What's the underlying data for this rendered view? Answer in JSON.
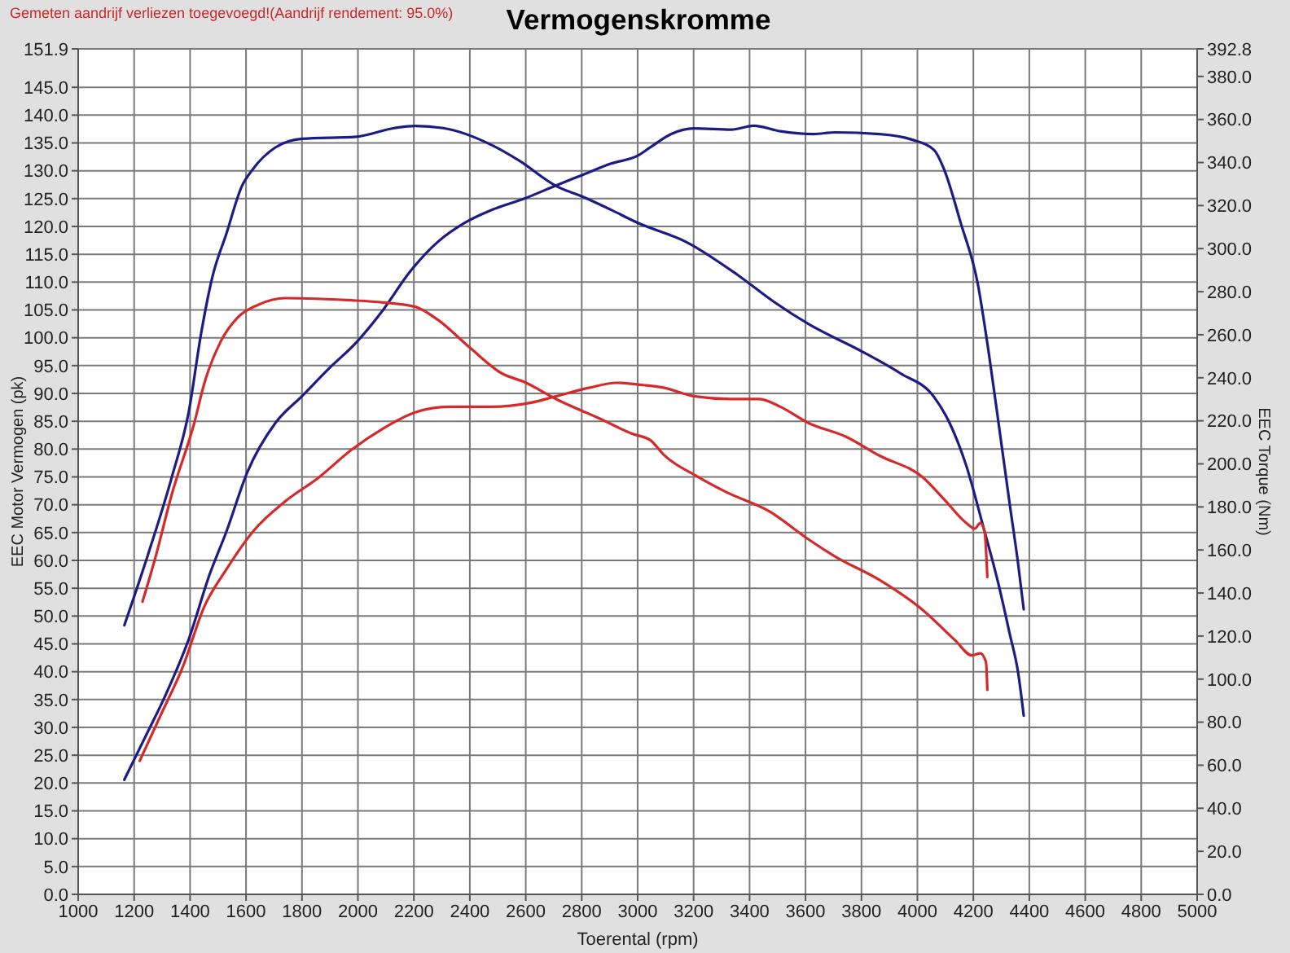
{
  "chart_data": {
    "type": "line",
    "title": "Vermogenskromme",
    "xlabel": "Toerental (rpm)",
    "ylabel": "EEC Motor Vermogen (pk)",
    "y2label": "EEC Torque (Nm)",
    "annotations": [
      "Gemeten aandrijf verliezen toegevoegd!(Aandrijf rendement: 95.0%)"
    ],
    "xlim": [
      1000,
      5000
    ],
    "xticks": [
      1000,
      1200,
      1400,
      1600,
      1800,
      2000,
      2200,
      2400,
      2600,
      2800,
      3000,
      3200,
      3400,
      3600,
      3800,
      4000,
      4200,
      4400,
      4600,
      4800,
      5000
    ],
    "ylim": [
      0,
      151.9
    ],
    "yticks": [
      {
        "value": 0,
        "label": "0.0"
      },
      {
        "value": 5,
        "label": "5.0"
      },
      {
        "value": 10,
        "label": "10.0"
      },
      {
        "value": 15,
        "label": "15.0"
      },
      {
        "value": 20,
        "label": "20.0"
      },
      {
        "value": 25,
        "label": "25.0"
      },
      {
        "value": 30,
        "label": "30.0"
      },
      {
        "value": 35,
        "label": "35.0"
      },
      {
        "value": 40,
        "label": "40.0"
      },
      {
        "value": 45,
        "label": "45.0"
      },
      {
        "value": 50,
        "label": "50.0"
      },
      {
        "value": 55,
        "label": "55.0"
      },
      {
        "value": 60,
        "label": "60.0"
      },
      {
        "value": 65,
        "label": "65.0"
      },
      {
        "value": 70,
        "label": "70.0"
      },
      {
        "value": 75,
        "label": "75.0"
      },
      {
        "value": 80,
        "label": "80.0"
      },
      {
        "value": 85,
        "label": "85.0"
      },
      {
        "value": 90,
        "label": "90.0"
      },
      {
        "value": 95,
        "label": "95.0"
      },
      {
        "value": 100,
        "label": "100.0"
      },
      {
        "value": 105,
        "label": "105.0"
      },
      {
        "value": 110,
        "label": "110.0"
      },
      {
        "value": 115,
        "label": "115.0"
      },
      {
        "value": 120,
        "label": "120.0"
      },
      {
        "value": 125,
        "label": "125.0"
      },
      {
        "value": 130,
        "label": "130.0"
      },
      {
        "value": 135,
        "label": "135.0"
      },
      {
        "value": 140,
        "label": "140.0"
      },
      {
        "value": 145,
        "label": "145.0"
      },
      151.9
    ],
    "y2lim": [
      0,
      392.8
    ],
    "y2ticks": [
      {
        "value": 0,
        "label": "0.0"
      },
      {
        "value": 20,
        "label": "20.0"
      },
      {
        "value": 40,
        "label": "40.0"
      },
      {
        "value": 60,
        "label": "60.0"
      },
      {
        "value": 80,
        "label": "80.0"
      },
      {
        "value": 100,
        "label": "100.0"
      },
      {
        "value": 120,
        "label": "120.0"
      },
      {
        "value": 140,
        "label": "140.0"
      },
      {
        "value": 160,
        "label": "160.0"
      },
      {
        "value": 180,
        "label": "180.0"
      },
      {
        "value": 200,
        "label": "200.0"
      },
      {
        "value": 220,
        "label": "220.0"
      },
      {
        "value": 240,
        "label": "240.0"
      },
      {
        "value": 260,
        "label": "260.0"
      },
      {
        "value": 280,
        "label": "280.0"
      },
      {
        "value": 300,
        "label": "300.0"
      },
      {
        "value": 320,
        "label": "320.0"
      },
      {
        "value": 340,
        "label": "340.0"
      },
      {
        "value": 360,
        "label": "360.0"
      },
      {
        "value": 380,
        "label": "380.0"
      },
      392.8
    ],
    "grid": true,
    "series": [
      {
        "color": "#1c1c84",
        "axis": "y2",
        "x": [
          1165,
          1250,
          1335,
          1395,
          1440,
          1480,
          1530,
          1585,
          1625,
          1705,
          1800,
          1995,
          2130,
          2205,
          2305,
          2480,
          2575,
          2710,
          2805,
          2905,
          3000,
          3175,
          3355,
          3490,
          3610,
          3805,
          3940,
          4060,
          4115,
          4175,
          4235,
          4290,
          4330,
          4360,
          4380
        ],
        "values": [
          125,
          158,
          194,
          224,
          261,
          287,
          307,
          329,
          337,
          347,
          351,
          352,
          356,
          357,
          356,
          348,
          341,
          329,
          324,
          318,
          312,
          303,
          288,
          275,
          265,
          252,
          242,
          231,
          219,
          199,
          171,
          144,
          121,
          103,
          83
        ]
      },
      {
        "color": "#1c1c84",
        "x": [
          1165,
          1240,
          1315,
          1395,
          1470,
          1530,
          1605,
          1705,
          1800,
          1895,
          1995,
          2090,
          2185,
          2285,
          2380,
          2480,
          2595,
          2710,
          2805,
          2905,
          3000,
          3045,
          3120,
          3200,
          3335,
          3415,
          3510,
          3630,
          3705,
          3865,
          3980,
          4060,
          4095,
          4155,
          4215,
          4255,
          4290,
          4330,
          4360,
          4380
        ],
        "values": [
          20.6,
          28.3,
          36.1,
          45.8,
          57.5,
          65.2,
          75.9,
          84.7,
          89.5,
          94.4,
          99.2,
          105.0,
          111.8,
          117.2,
          120.6,
          123.0,
          125.0,
          127.4,
          129.3,
          131.3,
          132.7,
          134.2,
          136.6,
          137.6,
          137.4,
          138.1,
          137.1,
          136.6,
          136.9,
          136.6,
          135.6,
          133.7,
          130.3,
          120.6,
          109.9,
          97.3,
          84.7,
          70.1,
          59.4,
          51.2
        ]
      },
      {
        "color": "#d42a2a",
        "axis": "y2",
        "x": [
          1230,
          1275,
          1335,
          1415,
          1450,
          1510,
          1570,
          1645,
          1740,
          1975,
          2090,
          2205,
          2285,
          2400,
          2515,
          2595,
          2710,
          2865,
          2980,
          3045,
          3095,
          3215,
          3315,
          3470,
          3610,
          3705,
          3865,
          4020,
          4135,
          4195,
          4225,
          4245,
          4250
        ],
        "values": [
          136,
          156,
          186,
          219,
          237,
          257,
          268,
          274,
          277,
          276,
          275,
          273,
          267,
          254,
          242,
          238,
          230,
          221,
          214,
          211,
          204,
          194,
          187,
          178,
          165,
          157,
          146,
          132,
          118,
          111,
          112,
          108,
          95
        ]
      },
      {
        "color": "#d42a2a",
        "x": [
          1220,
          1295,
          1375,
          1450,
          1530,
          1625,
          1740,
          1860,
          1975,
          2090,
          2205,
          2325,
          2480,
          2615,
          2710,
          2825,
          2925,
          3020,
          3095,
          3200,
          3330,
          3435,
          3510,
          3610,
          3745,
          3865,
          4020,
          4095,
          4175,
          4205,
          4225,
          4240,
          4250
        ],
        "values": [
          24.0,
          32.2,
          41.0,
          51.6,
          58.4,
          65.2,
          70.6,
          74.9,
          79.8,
          83.7,
          86.6,
          87.6,
          87.6,
          88.3,
          89.5,
          91.0,
          91.9,
          91.5,
          91.0,
          89.5,
          89.0,
          89.0,
          87.6,
          84.7,
          82.2,
          78.8,
          74.9,
          71.0,
          66.7,
          65.7,
          66.7,
          65.2,
          57.0
        ]
      }
    ]
  }
}
